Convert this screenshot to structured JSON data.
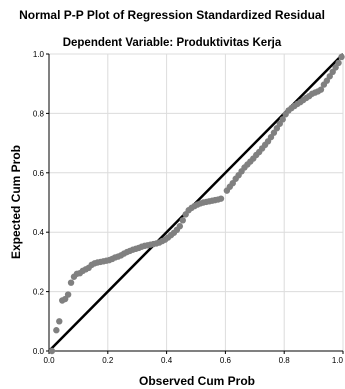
{
  "chart_data": {
    "type": "scatter",
    "title": "Normal P-P Plot of Regression Standardized Residual",
    "subtitle": "Dependent Variable: Produktivitas Kerja",
    "xlabel": "Observed Cum Prob",
    "ylabel": "Expected Cum Prob",
    "xlim": [
      0,
      1
    ],
    "ylim": [
      0,
      1
    ],
    "x_ticks": [
      "0.0",
      "0.2",
      "0.4",
      "0.6",
      "0.8",
      "1.0"
    ],
    "y_ticks": [
      "0.0",
      "0.2",
      "0.4",
      "0.6",
      "0.8",
      "1.0"
    ],
    "grid": true,
    "reference_line": [
      [
        0,
        0
      ],
      [
        1,
        1
      ]
    ],
    "colors": {
      "points": "#808080",
      "reference_line": "#000000",
      "grid": "#dcdcdc",
      "axis": "#000000"
    },
    "series": [
      {
        "points": [
          [
            0.01,
            0.0
          ],
          [
            0.025,
            0.07
          ],
          [
            0.035,
            0.1
          ],
          [
            0.045,
            0.17
          ],
          [
            0.055,
            0.175
          ],
          [
            0.065,
            0.19
          ],
          [
            0.075,
            0.23
          ],
          [
            0.085,
            0.25
          ],
          [
            0.095,
            0.26
          ],
          [
            0.105,
            0.262
          ],
          [
            0.115,
            0.27
          ],
          [
            0.125,
            0.275
          ],
          [
            0.135,
            0.28
          ],
          [
            0.145,
            0.29
          ],
          [
            0.155,
            0.295
          ],
          [
            0.165,
            0.298
          ],
          [
            0.175,
            0.3
          ],
          [
            0.185,
            0.302
          ],
          [
            0.195,
            0.304
          ],
          [
            0.205,
            0.306
          ],
          [
            0.215,
            0.31
          ],
          [
            0.225,
            0.315
          ],
          [
            0.235,
            0.318
          ],
          [
            0.245,
            0.322
          ],
          [
            0.255,
            0.328
          ],
          [
            0.265,
            0.333
          ],
          [
            0.275,
            0.337
          ],
          [
            0.285,
            0.341
          ],
          [
            0.295,
            0.344
          ],
          [
            0.305,
            0.347
          ],
          [
            0.315,
            0.351
          ],
          [
            0.325,
            0.354
          ],
          [
            0.335,
            0.356
          ],
          [
            0.345,
            0.358
          ],
          [
            0.355,
            0.36
          ],
          [
            0.365,
            0.362
          ],
          [
            0.375,
            0.365
          ],
          [
            0.385,
            0.37
          ],
          [
            0.395,
            0.375
          ],
          [
            0.405,
            0.382
          ],
          [
            0.415,
            0.39
          ],
          [
            0.425,
            0.398
          ],
          [
            0.435,
            0.408
          ],
          [
            0.445,
            0.42
          ],
          [
            0.455,
            0.44
          ],
          [
            0.465,
            0.46
          ],
          [
            0.475,
            0.474
          ],
          [
            0.485,
            0.482
          ],
          [
            0.495,
            0.488
          ],
          [
            0.505,
            0.493
          ],
          [
            0.515,
            0.497
          ],
          [
            0.525,
            0.5
          ],
          [
            0.535,
            0.502
          ],
          [
            0.545,
            0.504
          ],
          [
            0.555,
            0.506
          ],
          [
            0.565,
            0.508
          ],
          [
            0.575,
            0.51
          ],
          [
            0.585,
            0.513
          ],
          [
            0.605,
            0.54
          ],
          [
            0.615,
            0.553
          ],
          [
            0.625,
            0.565
          ],
          [
            0.635,
            0.58
          ],
          [
            0.645,
            0.592
          ],
          [
            0.655,
            0.605
          ],
          [
            0.665,
            0.618
          ],
          [
            0.675,
            0.628
          ],
          [
            0.685,
            0.638
          ],
          [
            0.695,
            0.648
          ],
          [
            0.705,
            0.66
          ],
          [
            0.715,
            0.67
          ],
          [
            0.725,
            0.682
          ],
          [
            0.735,
            0.694
          ],
          [
            0.745,
            0.706
          ],
          [
            0.755,
            0.72
          ],
          [
            0.765,
            0.735
          ],
          [
            0.775,
            0.75
          ],
          [
            0.785,
            0.765
          ],
          [
            0.795,
            0.78
          ],
          [
            0.805,
            0.797
          ],
          [
            0.815,
            0.81
          ],
          [
            0.825,
            0.818
          ],
          [
            0.835,
            0.825
          ],
          [
            0.845,
            0.832
          ],
          [
            0.855,
            0.838
          ],
          [
            0.865,
            0.845
          ],
          [
            0.875,
            0.852
          ],
          [
            0.885,
            0.858
          ],
          [
            0.895,
            0.866
          ],
          [
            0.905,
            0.87
          ],
          [
            0.915,
            0.874
          ],
          [
            0.925,
            0.88
          ],
          [
            0.935,
            0.897
          ],
          [
            0.945,
            0.91
          ],
          [
            0.955,
            0.925
          ],
          [
            0.965,
            0.94
          ],
          [
            0.975,
            0.955
          ],
          [
            0.985,
            0.97
          ],
          [
            0.995,
            0.99
          ]
        ]
      }
    ]
  }
}
